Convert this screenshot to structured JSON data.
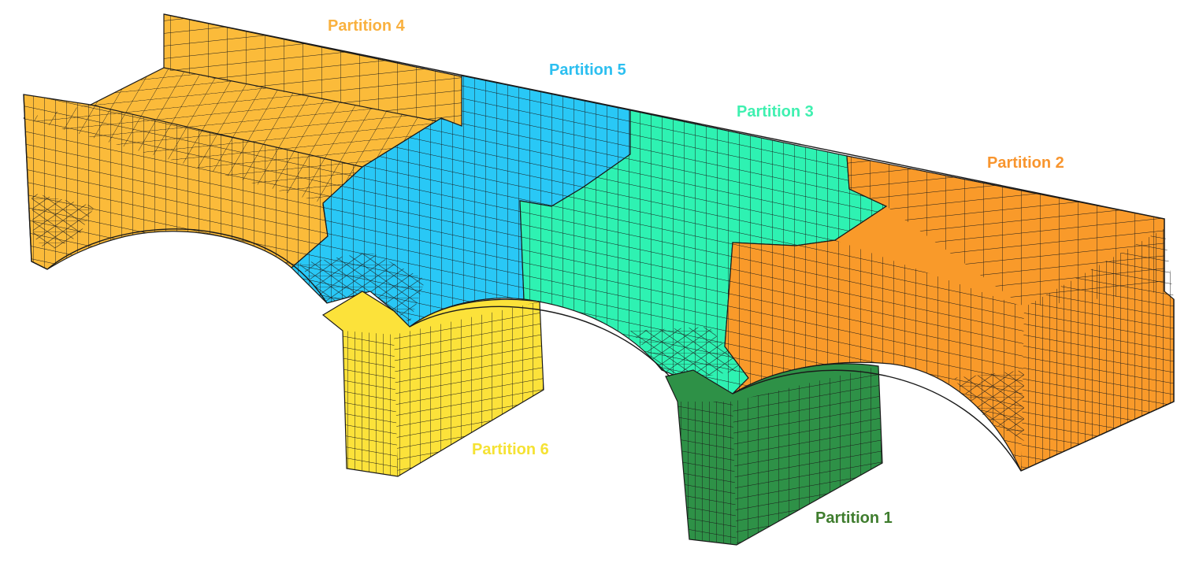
{
  "colors": {
    "background": "#ffffff",
    "mesh_line": "#1a1a1a",
    "partition_1": "#2e9147",
    "partition_2": "#f99a2a",
    "partition_3": "#2ef2b2",
    "partition_4": "#fbbb3a",
    "partition_5": "#29c8f6",
    "partition_6": "#fce23a",
    "partition_1_label": "#3f7d2e",
    "partition_2_label": "#f8952e",
    "partition_3_label": "#3ff0b0",
    "partition_4_label": "#f9b13f",
    "partition_5_label": "#2cbff0",
    "partition_6_label": "#f5e233"
  },
  "labels": {
    "partition_1": "Partition 1",
    "partition_2": "Partition 2",
    "partition_3": "Partition 3",
    "partition_4": "Partition 4",
    "partition_5": "Partition 5",
    "partition_6": "Partition 6"
  }
}
